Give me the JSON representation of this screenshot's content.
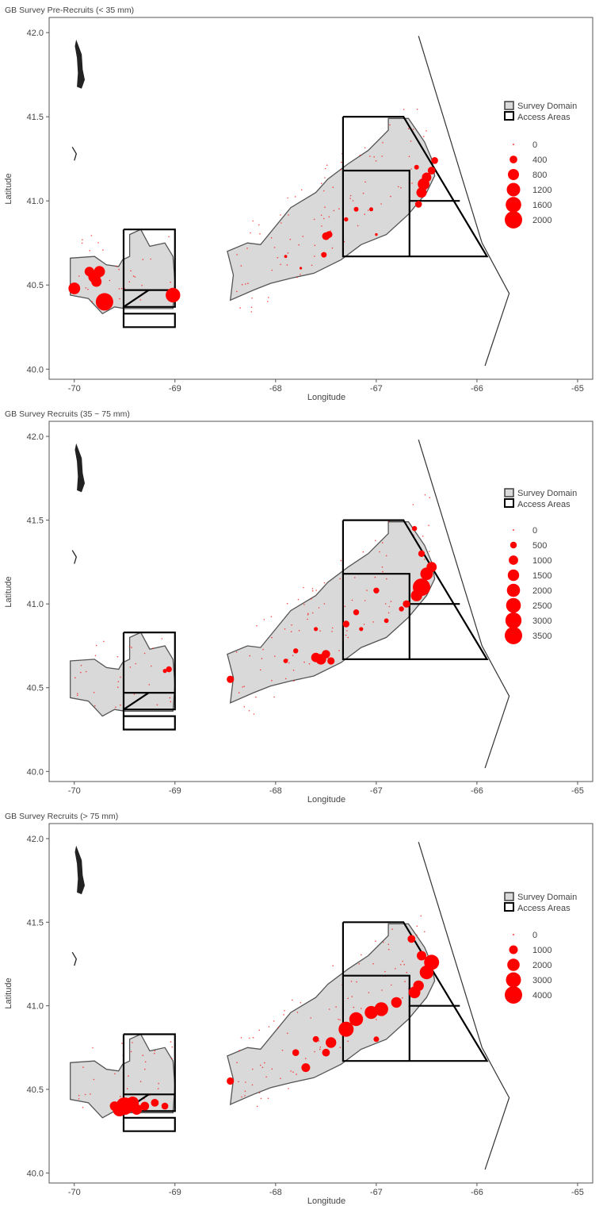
{
  "colors": {
    "panel_border": "#555555",
    "domain_fill": "#d9d9d9",
    "domain_stroke": "#555555",
    "access_stroke": "#000000",
    "bubble": "#ff0000",
    "coast": "#222222",
    "tick_text": "#444444"
  },
  "shared": {
    "xlabel": "Longitude",
    "ylabel": "Latitude",
    "x_ticks": [
      "-70",
      "-69",
      "-68",
      "-67",
      "-66",
      "-65"
    ],
    "x_tick_values": [
      -70,
      -69,
      -68,
      -67,
      -66,
      -65
    ],
    "y_ticks": [
      "40.0",
      "40.5",
      "41.0",
      "41.5",
      "42.0"
    ],
    "y_tick_values": [
      40.0,
      40.5,
      41.0,
      41.5,
      42.0
    ],
    "xlim": [
      -70.25,
      -64.85
    ],
    "ylim": [
      39.94,
      42.09
    ],
    "legend_domain": "Survey Domain",
    "legend_access": "Access Areas"
  },
  "chart_data": [
    {
      "type": "scatter",
      "title": "GB Survey Pre-Recruits (< 35 mm)",
      "legend_sizes": [
        "0",
        "400",
        "800",
        "1200",
        "1600",
        "2000"
      ],
      "legend_values": [
        0,
        400,
        800,
        1200,
        1600,
        2000
      ],
      "max_value": 2000,
      "points": [
        [
          -70.0,
          40.48,
          900
        ],
        [
          -69.7,
          40.4,
          2000
        ],
        [
          -69.8,
          40.55,
          1000
        ],
        [
          -69.75,
          40.58,
          800
        ],
        [
          -69.85,
          40.58,
          600
        ],
        [
          -69.78,
          40.52,
          700
        ],
        [
          -69.02,
          40.44,
          1400
        ],
        [
          -67.5,
          40.79,
          400
        ],
        [
          -67.47,
          40.8,
          300
        ],
        [
          -67.52,
          40.68,
          200
        ],
        [
          -67.3,
          40.89,
          120
        ],
        [
          -67.2,
          40.95,
          150
        ],
        [
          -67.05,
          40.95,
          100
        ],
        [
          -66.58,
          40.98,
          300
        ],
        [
          -66.55,
          41.05,
          700
        ],
        [
          -66.53,
          41.1,
          900
        ],
        [
          -66.5,
          41.14,
          600
        ],
        [
          -66.45,
          41.18,
          400
        ],
        [
          -66.42,
          41.24,
          300
        ],
        [
          -66.6,
          41.2,
          150
        ],
        [
          -67.9,
          40.67,
          60
        ],
        [
          -67.75,
          40.6,
          40
        ],
        [
          -67.0,
          40.8,
          50
        ]
      ]
    },
    {
      "type": "scatter",
      "title": "GB Survey Recruits (35 ~ 75 mm)",
      "legend_sizes": [
        "0",
        "500",
        "1000",
        "1500",
        "2000",
        "2500",
        "3000",
        "3500"
      ],
      "legend_values": [
        0,
        500,
        1000,
        1500,
        2000,
        2500,
        3000,
        3500
      ],
      "max_value": 3500,
      "points": [
        [
          -68.45,
          40.55,
          600
        ],
        [
          -69.06,
          40.61,
          400
        ],
        [
          -69.1,
          40.6,
          200
        ],
        [
          -67.6,
          40.68,
          1000
        ],
        [
          -67.55,
          40.67,
          1300
        ],
        [
          -67.5,
          40.7,
          800
        ],
        [
          -67.45,
          40.66,
          600
        ],
        [
          -67.8,
          40.72,
          300
        ],
        [
          -67.9,
          40.66,
          250
        ],
        [
          -67.3,
          40.88,
          500
        ],
        [
          -67.2,
          40.95,
          400
        ],
        [
          -67.0,
          41.08,
          400
        ],
        [
          -66.75,
          40.97,
          300
        ],
        [
          -66.6,
          41.05,
          1500
        ],
        [
          -66.55,
          41.1,
          3500
        ],
        [
          -66.5,
          41.18,
          1800
        ],
        [
          -66.45,
          41.22,
          1200
        ],
        [
          -66.55,
          41.3,
          500
        ],
        [
          -66.62,
          41.45,
          300
        ],
        [
          -66.7,
          41.0,
          600
        ],
        [
          -67.6,
          40.85,
          200
        ],
        [
          -67.15,
          40.85,
          200
        ],
        [
          -66.9,
          40.9,
          250
        ]
      ]
    },
    {
      "type": "scatter",
      "title": "GB Survey Recruits (> 75 mm)",
      "legend_sizes": [
        "0",
        "1000",
        "2000",
        "3000",
        "4000"
      ],
      "legend_values": [
        0,
        1000,
        2000,
        3000,
        4000
      ],
      "max_value": 4000,
      "points": [
        [
          -69.5,
          40.4,
          4000
        ],
        [
          -69.55,
          40.38,
          2500
        ],
        [
          -69.42,
          40.42,
          2000
        ],
        [
          -69.38,
          40.38,
          1500
        ],
        [
          -69.3,
          40.4,
          1000
        ],
        [
          -69.2,
          40.42,
          800
        ],
        [
          -69.1,
          40.4,
          600
        ],
        [
          -69.6,
          40.4,
          1200
        ],
        [
          -68.45,
          40.55,
          700
        ],
        [
          -67.7,
          40.63,
          1000
        ],
        [
          -67.5,
          40.72,
          800
        ],
        [
          -67.45,
          40.78,
          1500
        ],
        [
          -67.3,
          40.86,
          3000
        ],
        [
          -67.2,
          40.92,
          2500
        ],
        [
          -67.05,
          40.96,
          2200
        ],
        [
          -66.95,
          40.98,
          2500
        ],
        [
          -66.8,
          41.02,
          1500
        ],
        [
          -66.62,
          41.08,
          1800
        ],
        [
          -66.5,
          41.2,
          2500
        ],
        [
          -66.45,
          41.26,
          3000
        ],
        [
          -66.55,
          41.3,
          1200
        ],
        [
          -66.65,
          41.4,
          800
        ],
        [
          -66.58,
          41.12,
          1500
        ],
        [
          -67.8,
          40.72,
          600
        ],
        [
          -67.6,
          40.8,
          500
        ],
        [
          -67.0,
          40.8,
          400
        ]
      ]
    }
  ]
}
